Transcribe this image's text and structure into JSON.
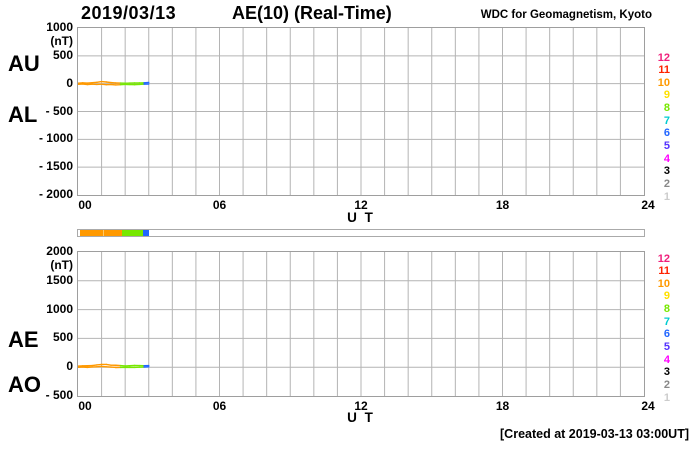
{
  "header": {
    "date": "2019/03/13",
    "title": "AE(10) (Real-Time)",
    "source": "WDC for Geomagnetism, Kyoto"
  },
  "footer": {
    "created": "[Created at 2019-03-13 03:00UT]"
  },
  "legend": {
    "station_counts": [
      "12",
      "11",
      "10",
      "9",
      "8",
      "7",
      "6",
      "5",
      "4",
      "3",
      "2",
      "1"
    ],
    "colors": {
      "12": "#f0207c",
      "11": "#ff2200",
      "10": "#ff9900",
      "9": "#ffe000",
      "8": "#77e800",
      "7": "#00ccd0",
      "6": "#2266ff",
      "5": "#5533ff",
      "4": "#ff00ff",
      "3": "#000000",
      "2": "#888888",
      "1": "#cccccc"
    }
  },
  "station_coverage": {
    "segments": [
      {
        "from_hour": 0.08,
        "to_hour": 1.87,
        "stations": "10"
      },
      {
        "from_hour": 1.87,
        "to_hour": 2.75,
        "stations": "8"
      },
      {
        "from_hour": 2.75,
        "to_hour": 3.0,
        "stations": "6"
      }
    ],
    "divider_hour": 1.05,
    "divider_color": "#ffc966"
  },
  "chart_data": [
    {
      "type": "line",
      "side_labels": [
        "AU",
        "AL"
      ],
      "unit": "(nT)",
      "ut_label": "U T",
      "ylim": [
        -2000,
        1000
      ],
      "xlim": [
        0,
        24
      ],
      "grid": true,
      "y_tick_values": [
        1000,
        500,
        0,
        -500,
        -1000,
        -1500,
        -2000
      ],
      "y_tick_labels": [
        "1000",
        "500",
        "0",
        "- 500",
        "- 1000",
        "- 1500",
        "- 2000"
      ],
      "x_tick_hours": [
        0,
        6,
        12,
        18,
        24
      ],
      "x_tick_labels": [
        "00",
        "06",
        "12",
        "18",
        "24"
      ],
      "x": [
        0,
        0.2,
        0.4,
        0.6,
        0.8,
        1.0,
        1.2,
        1.4,
        1.6,
        1.8,
        2.0,
        2.2,
        2.4,
        2.6,
        2.8,
        3.0
      ],
      "series": [
        {
          "name": "AU",
          "values": [
            8,
            15,
            10,
            18,
            25,
            38,
            30,
            20,
            12,
            10,
            8,
            10,
            12,
            14,
            16,
            22
          ]
        },
        {
          "name": "AL",
          "values": [
            -12,
            -8,
            -15,
            -10,
            -14,
            -10,
            -18,
            -15,
            -22,
            -18,
            -14,
            -16,
            -18,
            -14,
            -10,
            -6
          ]
        }
      ]
    },
    {
      "type": "line",
      "side_labels": [
        "AE",
        "AO"
      ],
      "unit": "(nT)",
      "ut_label": "U T",
      "ylim": [
        -500,
        2000
      ],
      "xlim": [
        0,
        24
      ],
      "grid": true,
      "y_tick_values": [
        2000,
        1500,
        1000,
        500,
        0,
        -500
      ],
      "y_tick_labels": [
        "2000",
        "1500",
        "1000",
        "500",
        "0",
        "- 500"
      ],
      "x_tick_hours": [
        0,
        6,
        12,
        18,
        24
      ],
      "x_tick_labels": [
        "00",
        "06",
        "12",
        "18",
        "24"
      ],
      "x": [
        0,
        0.2,
        0.4,
        0.6,
        0.8,
        1.0,
        1.2,
        1.4,
        1.6,
        1.8,
        2.0,
        2.2,
        2.4,
        2.6,
        2.8,
        3.0
      ],
      "series": [
        {
          "name": "AE",
          "values": [
            20,
            23,
            25,
            28,
            39,
            48,
            48,
            35,
            34,
            28,
            22,
            26,
            30,
            28,
            26,
            28
          ]
        },
        {
          "name": "AO",
          "values": [
            -2,
            3,
            -3,
            4,
            6,
            14,
            6,
            2,
            -5,
            -4,
            -3,
            -3,
            -3,
            0,
            3,
            8
          ]
        }
      ]
    }
  ]
}
